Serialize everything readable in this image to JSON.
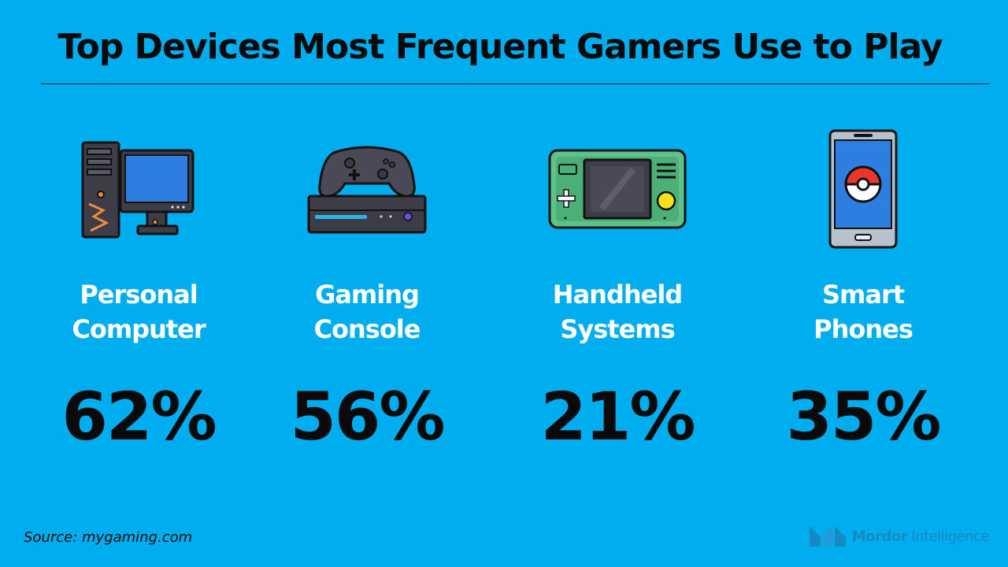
{
  "title": "Top Devices Most Frequent Gamers Use to Play",
  "devices": [
    {
      "label_line1": "Personal",
      "label_line2": "Computer",
      "percent": "62%",
      "icon": "desktop-computer-icon"
    },
    {
      "label_line1": "Gaming",
      "label_line2": "Console",
      "percent": "56%",
      "icon": "game-console-icon"
    },
    {
      "label_line1": "Handheld",
      "label_line2": "Systems",
      "percent": "21%",
      "icon": "handheld-console-icon"
    },
    {
      "label_line1": "Smart",
      "label_line2": "Phones",
      "percent": "35%",
      "icon": "smartphone-icon"
    }
  ],
  "footer": {
    "source": "Source: mygaming.com",
    "brand_bold": "Mordor",
    "brand_light": "Intelligence"
  },
  "colors": {
    "background": "#00aeef",
    "title": "#0a0a0a",
    "label": "#ffffff",
    "percent": "#0a0a0a"
  }
}
